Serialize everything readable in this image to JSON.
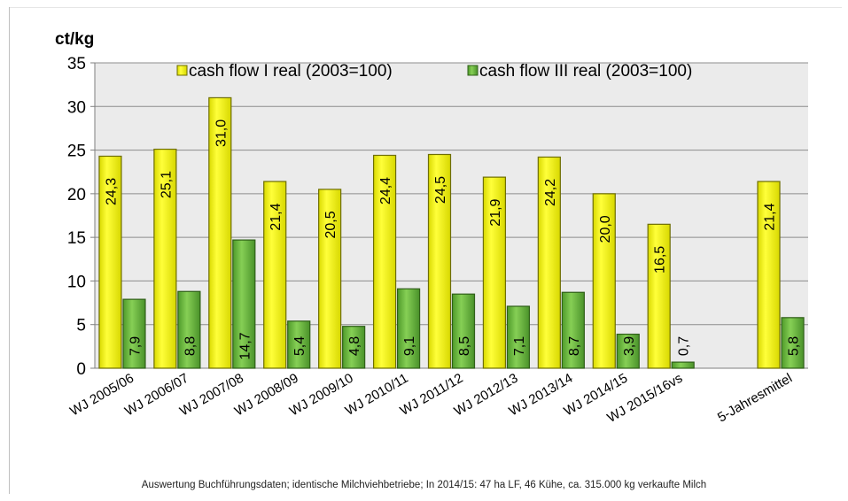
{
  "chart_data": {
    "type": "bar",
    "ylabel": "ct/kg",
    "ylim": [
      0,
      35
    ],
    "yticks": [
      0,
      5,
      10,
      15,
      20,
      25,
      30,
      35
    ],
    "grid": true,
    "legend_position": "top-center",
    "categories": [
      "WJ 2005/06",
      "WJ 2006/07",
      "WJ 2007/08",
      "WJ 2008/09",
      "WJ 2009/10",
      "WJ 2010/11",
      "WJ 2011/12",
      "WJ 2012/13",
      "WJ 2013/14",
      "WJ 2014/15",
      "WJ 2015/16vs",
      "",
      "5-Jahresmittel"
    ],
    "series": [
      {
        "name": "cash flow I real (2003=100)",
        "color": "#f2f200",
        "values": [
          24.3,
          25.1,
          31.0,
          21.4,
          20.5,
          24.4,
          24.5,
          21.9,
          24.2,
          20.0,
          16.5,
          null,
          21.4
        ],
        "labels": [
          "24,3",
          "25,1",
          "31,0",
          "21,4",
          "20,5",
          "24,4",
          "24,5",
          "21,9",
          "24,2",
          "20,0",
          "16,5",
          "",
          "21,4"
        ]
      },
      {
        "name": "cash flow III real (2003=100)",
        "color": "#6fbf3c",
        "values": [
          7.9,
          8.8,
          14.7,
          5.4,
          4.8,
          9.1,
          8.5,
          7.1,
          8.7,
          3.9,
          0.7,
          null,
          5.8
        ],
        "labels": [
          "7,9",
          "8,8",
          "14,7",
          "5,4",
          "4,8",
          "9,1",
          "8,5",
          "7,1",
          "8,7",
          "3,9",
          "0,7",
          "",
          "5,8"
        ]
      }
    ]
  },
  "footnote": "Auswertung Buchführungsdaten; identische Milchviehbetriebe; In 2014/15:  47 ha LF, 46 Kühe, ca. 315.000 kg verkaufte Milch"
}
